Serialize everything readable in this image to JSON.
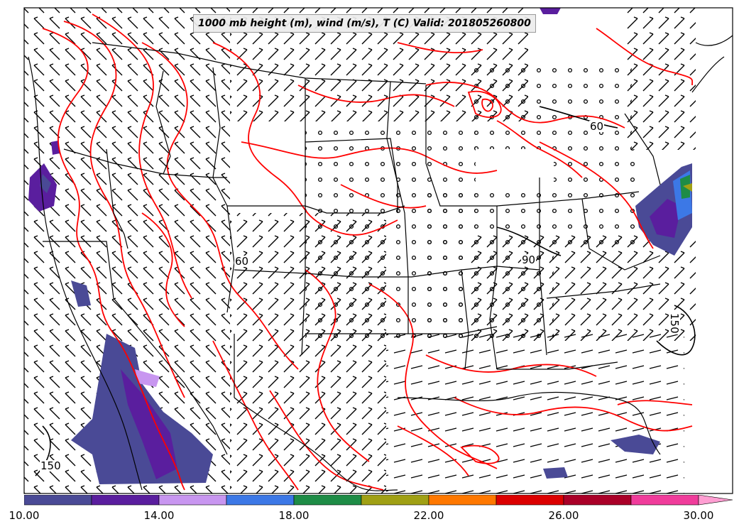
{
  "title": "1000 mb height (m), wind (m/s), T (C) Valid: 201805260800",
  "colorbar": {
    "tick_labels": [
      "10.00",
      "14.00",
      "18.00",
      "22.00",
      "26.00",
      "30.00"
    ],
    "bins": [
      {
        "color": "#4a4a96"
      },
      {
        "color": "#5a1e9e"
      },
      {
        "color": "#c896f0"
      },
      {
        "color": "#3c78e6"
      },
      {
        "color": "#1e8c46"
      },
      {
        "color": "#a0a014"
      },
      {
        "color": "#ff7800"
      },
      {
        "color": "#dc0000"
      },
      {
        "color": "#aa0028"
      },
      {
        "color": "#f03c9b"
      },
      {
        "color": "#ff9ed2"
      }
    ],
    "extend": "max"
  },
  "contour_labels": {
    "east_150": "150",
    "lakes_60": "60",
    "ohio_90": "90",
    "west_60": "60",
    "sw_150": "150"
  },
  "colors": {
    "temperature_contour": "#ff0000",
    "height_contour": "#000000",
    "borders": "#000000"
  }
}
